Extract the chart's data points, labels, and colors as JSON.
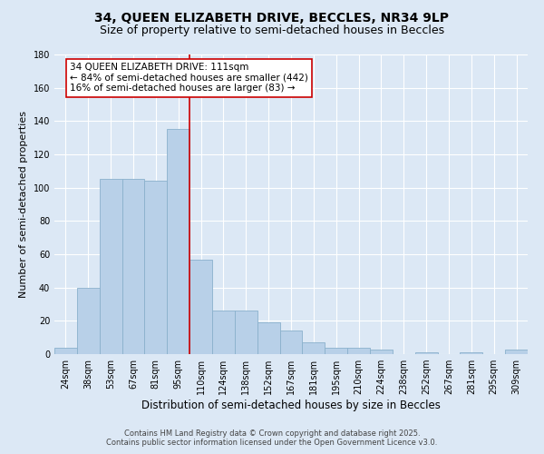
{
  "title": "34, QUEEN ELIZABETH DRIVE, BECCLES, NR34 9LP",
  "subtitle": "Size of property relative to semi-detached houses in Beccles",
  "xlabel": "Distribution of semi-detached houses by size in Beccles",
  "ylabel": "Number of semi-detached properties",
  "bins": [
    "24sqm",
    "38sqm",
    "53sqm",
    "67sqm",
    "81sqm",
    "95sqm",
    "110sqm",
    "124sqm",
    "138sqm",
    "152sqm",
    "167sqm",
    "181sqm",
    "195sqm",
    "210sqm",
    "224sqm",
    "238sqm",
    "252sqm",
    "267sqm",
    "281sqm",
    "295sqm",
    "309sqm"
  ],
  "values": [
    4,
    40,
    105,
    105,
    104,
    135,
    57,
    26,
    26,
    19,
    14,
    7,
    4,
    4,
    3,
    0,
    1,
    0,
    1,
    0,
    3
  ],
  "ylim": [
    0,
    180
  ],
  "yticks": [
    0,
    20,
    40,
    60,
    80,
    100,
    120,
    140,
    160,
    180
  ],
  "bar_color": "#b8d0e8",
  "bar_edge_color": "#8ab0cc",
  "background_color": "#dce8f5",
  "grid_color": "#ffffff",
  "property_line_color": "#cc0000",
  "annotation_line1": "34 QUEEN ELIZABETH DRIVE: 111sqm",
  "annotation_line2": "← 84% of semi-detached houses are smaller (442)",
  "annotation_line3": "16% of semi-detached houses are larger (83) →",
  "annotation_box_facecolor": "#ffffff",
  "annotation_box_edge": "#cc0000",
  "footer1": "Contains HM Land Registry data © Crown copyright and database right 2025.",
  "footer2": "Contains public sector information licensed under the Open Government Licence v3.0.",
  "title_fontsize": 10,
  "subtitle_fontsize": 9,
  "tick_fontsize": 7,
  "ylabel_fontsize": 8,
  "xlabel_fontsize": 8.5,
  "annotation_fontsize": 7.5,
  "footer_fontsize": 6
}
